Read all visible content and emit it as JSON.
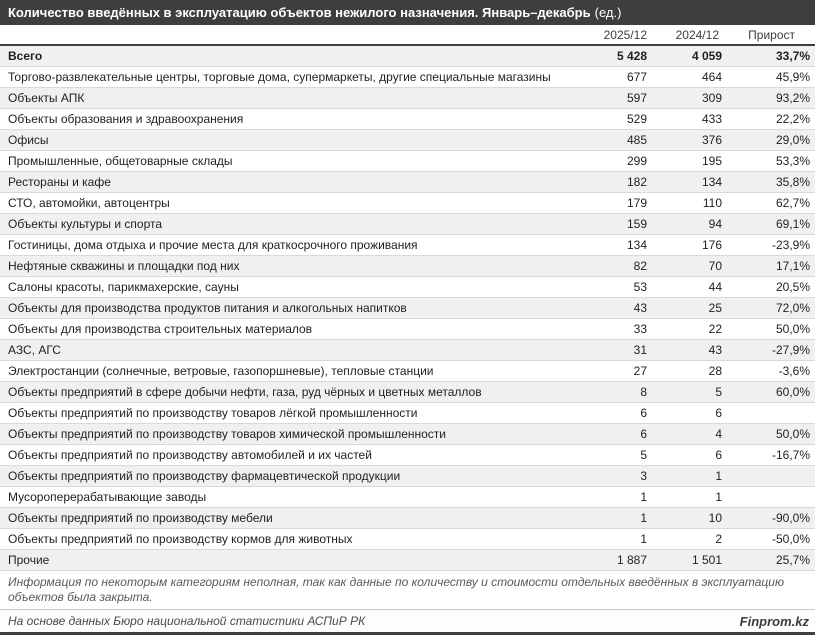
{
  "title": {
    "main": "Количество введённых в эксплуатацию объектов нежилого назначения. Январь–декабрь",
    "unit": "(ед.)"
  },
  "colors": {
    "title_bar_bg": "#3e3e3e",
    "title_text": "#ffffff",
    "row_shade_bg": "#f0f0ef",
    "row_border": "#d9d9d9",
    "dark_border": "#3e3e3e",
    "body_text": "#1f1f1f",
    "muted_text": "#595959"
  },
  "chart_data": {
    "type": "table",
    "title": "Количество введённых в эксплуатацию объектов нежилого назначения. Январь–декабрь (ед.)",
    "columns": [
      "2025/12",
      "2024/12",
      "Прирост"
    ],
    "rows": [
      {
        "label": "Всего",
        "v2025": "5 428",
        "v2024": "4 059",
        "growth": "33,7%",
        "bold": true
      },
      {
        "label": "Торгово-развлекательные центры, торговые дома, супермаркеты, другие специальные магазины",
        "v2025": "677",
        "v2024": "464",
        "growth": "45,9%",
        "bold": false
      },
      {
        "label": "Объекты АПК",
        "v2025": "597",
        "v2024": "309",
        "growth": "93,2%",
        "bold": false
      },
      {
        "label": "Объекты образования и здравоохранения",
        "v2025": "529",
        "v2024": "433",
        "growth": "22,2%",
        "bold": false
      },
      {
        "label": "Офисы",
        "v2025": "485",
        "v2024": "376",
        "growth": "29,0%",
        "bold": false
      },
      {
        "label": "Промышленные, общетоварные склады",
        "v2025": "299",
        "v2024": "195",
        "growth": "53,3%",
        "bold": false
      },
      {
        "label": "Рестораны и кафе",
        "v2025": "182",
        "v2024": "134",
        "growth": "35,8%",
        "bold": false
      },
      {
        "label": "СТО, автомойки, автоцентры",
        "v2025": "179",
        "v2024": "110",
        "growth": "62,7%",
        "bold": false
      },
      {
        "label": "Объекты культуры и спорта",
        "v2025": "159",
        "v2024": "94",
        "growth": "69,1%",
        "bold": false
      },
      {
        "label": "Гостиницы, дома отдыха и прочие места для краткосрочного проживания",
        "v2025": "134",
        "v2024": "176",
        "growth": "-23,9%",
        "bold": false
      },
      {
        "label": "Нефтяные скважины и площадки под них",
        "v2025": "82",
        "v2024": "70",
        "growth": "17,1%",
        "bold": false
      },
      {
        "label": "Салоны красоты, парикмахерские, сауны",
        "v2025": "53",
        "v2024": "44",
        "growth": "20,5%",
        "bold": false
      },
      {
        "label": "Объекты для производства продуктов питания и алкогольных напитков",
        "v2025": "43",
        "v2024": "25",
        "growth": "72,0%",
        "bold": false
      },
      {
        "label": "Объекты для производства строительных материалов",
        "v2025": "33",
        "v2024": "22",
        "growth": "50,0%",
        "bold": false
      },
      {
        "label": "АЗС, АГС",
        "v2025": "31",
        "v2024": "43",
        "growth": "-27,9%",
        "bold": false
      },
      {
        "label": "Электростанции (солнечные, ветровые, газопоршневые), тепловые станции",
        "v2025": "27",
        "v2024": "28",
        "growth": "-3,6%",
        "bold": false
      },
      {
        "label": "Объекты предприятий в сфере добычи нефти, газа, руд чёрных и цветных металлов",
        "v2025": "8",
        "v2024": "5",
        "growth": "60,0%",
        "bold": false
      },
      {
        "label": "Объекты предприятий по производству товаров лёгкой промышленности",
        "v2025": "6",
        "v2024": "6",
        "growth": "",
        "bold": false
      },
      {
        "label": "Объекты предприятий по производству товаров химической промышленности",
        "v2025": "6",
        "v2024": "4",
        "growth": "50,0%",
        "bold": false
      },
      {
        "label": "Объекты предприятий по производству автомобилей и их частей",
        "v2025": "5",
        "v2024": "6",
        "growth": "-16,7%",
        "bold": false
      },
      {
        "label": "Объекты предприятий по производству фармацевтической продукции",
        "v2025": "3",
        "v2024": "1",
        "growth": "",
        "bold": false
      },
      {
        "label": "Мусороперерабатывающие заводы",
        "v2025": "1",
        "v2024": "1",
        "growth": "",
        "bold": false
      },
      {
        "label": "Объекты предприятий по производству мебели",
        "v2025": "1",
        "v2024": "10",
        "growth": "-90,0%",
        "bold": false
      },
      {
        "label": "Объекты предприятий по производству кормов для животных",
        "v2025": "1",
        "v2024": "2",
        "growth": "-50,0%",
        "bold": false
      },
      {
        "label": "Прочие",
        "v2025": "1 887",
        "v2024": "1 501",
        "growth": "25,7%",
        "bold": false
      }
    ]
  },
  "header": {
    "col_2025": "2025/12",
    "col_2024": "2024/12",
    "col_growth": "Прирост"
  },
  "footnote": "Информация по некоторым категориям неполная, так как данные по количеству и стоимости отдельных введённых в эксплуатацию объектов была закрыта.",
  "source": "На основе данных Бюро национальной статистики АСПиР РК",
  "brand": "Finprom.kz"
}
